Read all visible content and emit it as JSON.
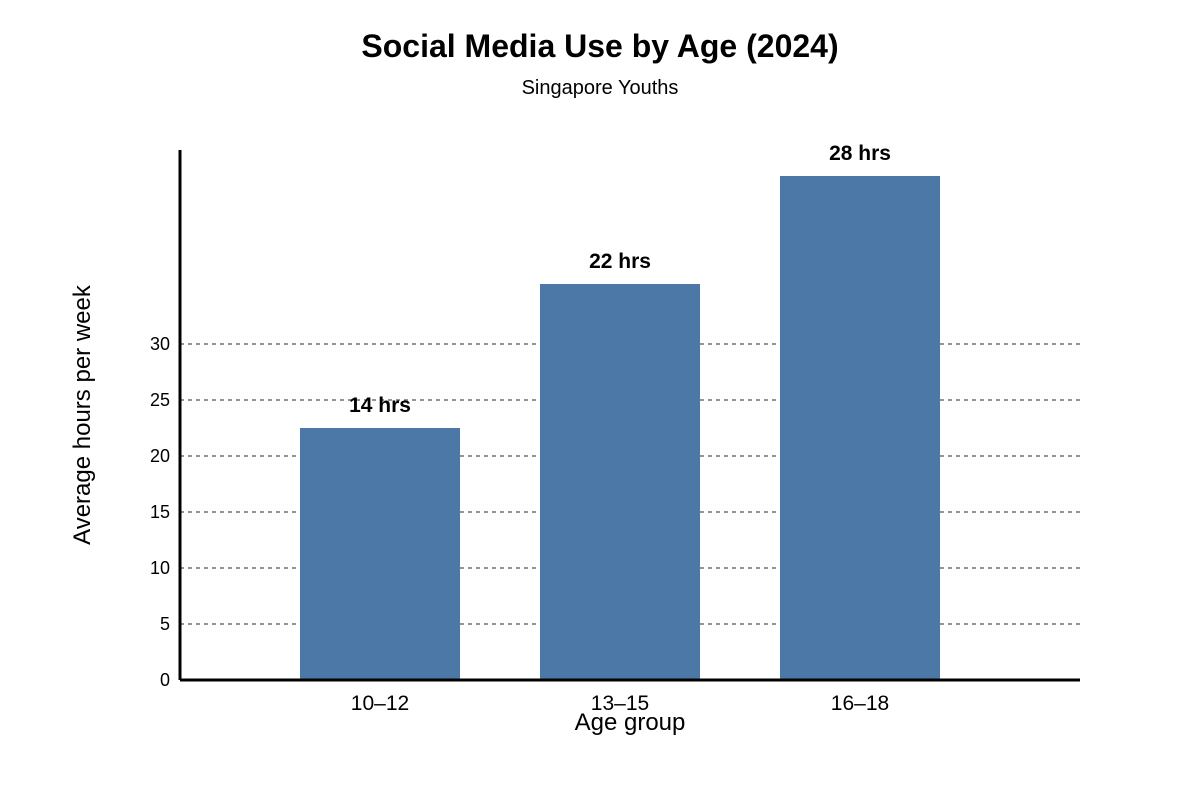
{
  "chart_data": {
    "type": "bar",
    "title": "Social Media Use by Age (2024)",
    "subtitle": "Singapore Youths",
    "xlabel": "Age group",
    "ylabel": "Average hours per week",
    "categories": [
      "10–12",
      "13–15",
      "16–18"
    ],
    "values": [
      14,
      22,
      28
    ],
    "data_labels": [
      "14 hrs",
      "22 hrs",
      "28 hrs"
    ],
    "y_ticks": [
      0,
      5,
      10,
      15,
      20,
      25,
      30
    ],
    "grid": true,
    "bar_color": "#4c78a8"
  }
}
